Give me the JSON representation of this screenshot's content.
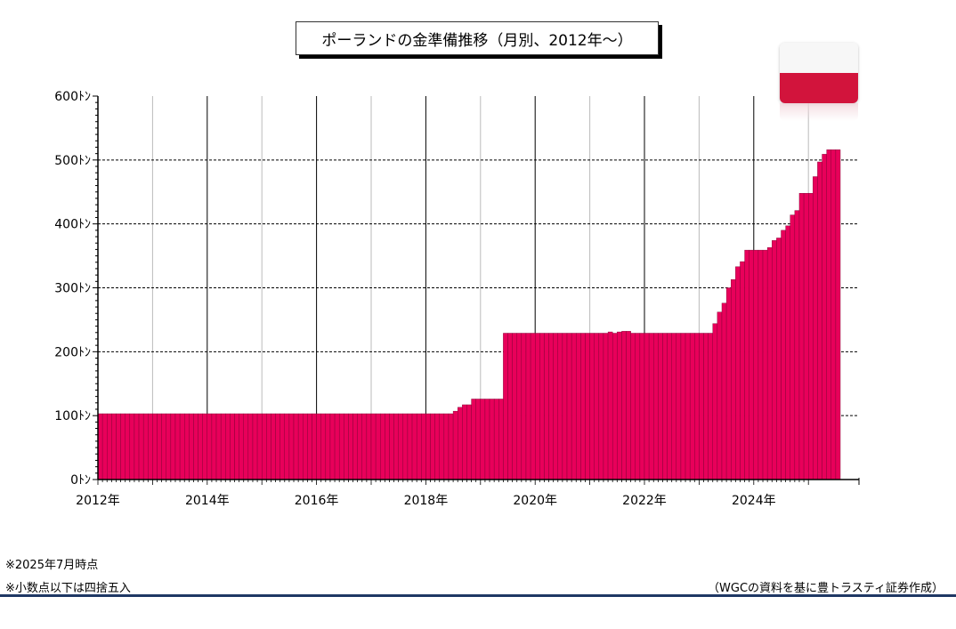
{
  "chart_data": {
    "type": "bar",
    "title": "ポーランドの金準備推移（月別、2012年～）",
    "ylim": [
      0,
      600
    ],
    "yticks": [
      "600ﾄﾝ",
      "500ﾄﾝ",
      "400ﾄﾝ",
      "300ﾄﾝ",
      "200ﾄﾝ",
      "100ﾄﾝ",
      "0ﾄﾝ"
    ],
    "ytick_values": [
      600,
      500,
      400,
      300,
      200,
      100,
      0
    ],
    "xticks": [
      "2012年",
      "2014年",
      "2016年",
      "2018年",
      "2020年",
      "2022年",
      "2024年"
    ],
    "x_start": "2012-01",
    "x_end": "2025-07",
    "grid": true,
    "bar_color": "#e8005a",
    "steps": [
      {
        "from": "2012-01",
        "to": "2018-06",
        "value": 103
      },
      {
        "from": "2018-07",
        "to": "2018-07",
        "value": 107
      },
      {
        "from": "2018-08",
        "to": "2018-08",
        "value": 113
      },
      {
        "from": "2018-09",
        "to": "2018-10",
        "value": 117
      },
      {
        "from": "2018-11",
        "to": "2019-05",
        "value": 126
      },
      {
        "from": "2019-06",
        "to": "2021-04",
        "value": 229
      },
      {
        "from": "2021-05",
        "to": "2021-05",
        "value": 231
      },
      {
        "from": "2021-06",
        "to": "2021-06",
        "value": 229
      },
      {
        "from": "2021-07",
        "to": "2021-07",
        "value": 231
      },
      {
        "from": "2021-08",
        "to": "2021-09",
        "value": 232
      },
      {
        "from": "2021-10",
        "to": "2023-03",
        "value": 229
      },
      {
        "from": "2023-04",
        "to": "2023-04",
        "value": 244
      },
      {
        "from": "2023-05",
        "to": "2023-05",
        "value": 262
      },
      {
        "from": "2023-06",
        "to": "2023-06",
        "value": 276
      },
      {
        "from": "2023-07",
        "to": "2023-07",
        "value": 300
      },
      {
        "from": "2023-08",
        "to": "2023-08",
        "value": 313
      },
      {
        "from": "2023-09",
        "to": "2023-09",
        "value": 333
      },
      {
        "from": "2023-10",
        "to": "2023-10",
        "value": 341
      },
      {
        "from": "2023-11",
        "to": "2024-03",
        "value": 359
      },
      {
        "from": "2024-04",
        "to": "2024-04",
        "value": 363
      },
      {
        "from": "2024-05",
        "to": "2024-05",
        "value": 374
      },
      {
        "from": "2024-06",
        "to": "2024-06",
        "value": 378
      },
      {
        "from": "2024-07",
        "to": "2024-07",
        "value": 390
      },
      {
        "from": "2024-08",
        "to": "2024-08",
        "value": 397
      },
      {
        "from": "2024-09",
        "to": "2024-09",
        "value": 414
      },
      {
        "from": "2024-10",
        "to": "2024-10",
        "value": 421
      },
      {
        "from": "2024-11",
        "to": "2024-11",
        "value": 448
      },
      {
        "from": "2024-12",
        "to": "2025-01",
        "value": 448
      },
      {
        "from": "2025-02",
        "to": "2025-02",
        "value": 474
      },
      {
        "from": "2025-03",
        "to": "2025-03",
        "value": 497
      },
      {
        "from": "2025-04",
        "to": "2025-04",
        "value": 509
      },
      {
        "from": "2025-05",
        "to": "2025-07",
        "value": 516
      }
    ]
  },
  "notes": [
    "※2025年7月時点",
    "※小数点以下は四捨五入"
  ],
  "source": "（WGCの資料を基に豊トラスティ証券作成）"
}
